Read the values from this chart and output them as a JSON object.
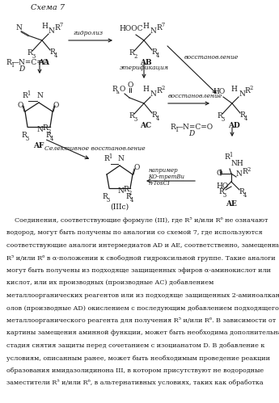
{
  "title": "Схема 7",
  "bg_color": "#ffffff",
  "text_color": "#1a1a1a",
  "lines": [
    "    Соединения, соответствующие формуле (III), где R⁵ и/или R⁶ не означают",
    "водород, могут быть получены по аналогии со схемой 7, где используются",
    "соответствующие аналоги интермедиатов AD и AE, соответственно, замещенные",
    "R⁵ и/или R⁶ в α-положении к свободной гидроксильной группе. Такие аналоги",
    "могут быть получены из подходяще защищенных эфиров α-аминокислот или",
    "кислот, или их производных (производные AC) добавлением",
    "металлоорганических реагентов или из подходяще защищенных 2-аминоалкан-1-",
    "олов (производные AD) окислением с последующим добавлением подходящего",
    "металлоорганического реагента для получения R⁵ и/или R⁶. В зависимости от",
    "картины замещения аминной функции, может быть необходима дополнительная",
    "стадия снятия защиты перед сочетанием с изоцианатом D. В добавление к",
    "условиям, описанным ранее, может быть необходимым проведение реакции",
    "образования имидазолидинона III, в котором присутствуют не водородные",
    "заместители R⁵ и/или R⁶, в альтернативных условиях, таких как обработка"
  ]
}
